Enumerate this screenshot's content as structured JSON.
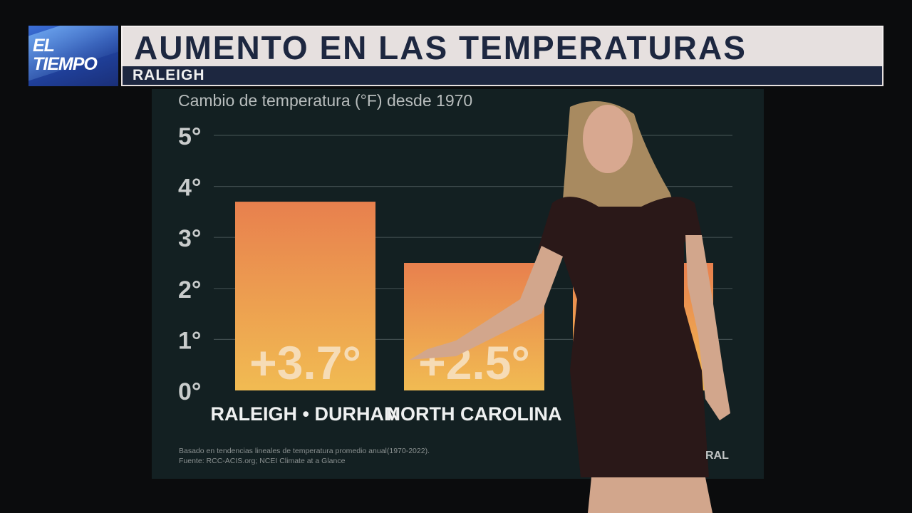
{
  "header": {
    "logo_line1": "EL",
    "logo_line2": "TIEMPO",
    "title": "AUMENTO EN LAS TEMPERATURAS",
    "subtitle": "RALEIGH"
  },
  "colors": {
    "bar_top": "#e8804e",
    "bar_bottom": "#f1bb52",
    "panel": "#132022",
    "navy": "#1d2740"
  },
  "chart_data": {
    "type": "bar",
    "title": "Cambio de temperatura (°F) desde 1970",
    "categories": [
      "RALEIGH • DURHAM",
      "NORTH CAROLINA",
      ""
    ],
    "values": [
      3.7,
      2.5,
      2.5
    ],
    "data_labels": [
      "+3.7°",
      "+2.5°",
      ""
    ],
    "ylim": [
      0,
      5
    ],
    "yticks": [
      "0°",
      "1°",
      "2°",
      "3°",
      "4°",
      "5°"
    ],
    "grid": true,
    "xlabel": "",
    "ylabel": ""
  },
  "footer": {
    "note": "Basado en tendencias lineales de temperatura promedio anual(1970-2022).",
    "source": "Fuente: RCC-ACIS.org; NCEI Climate at a Glance",
    "brand_partial": "RAL"
  }
}
